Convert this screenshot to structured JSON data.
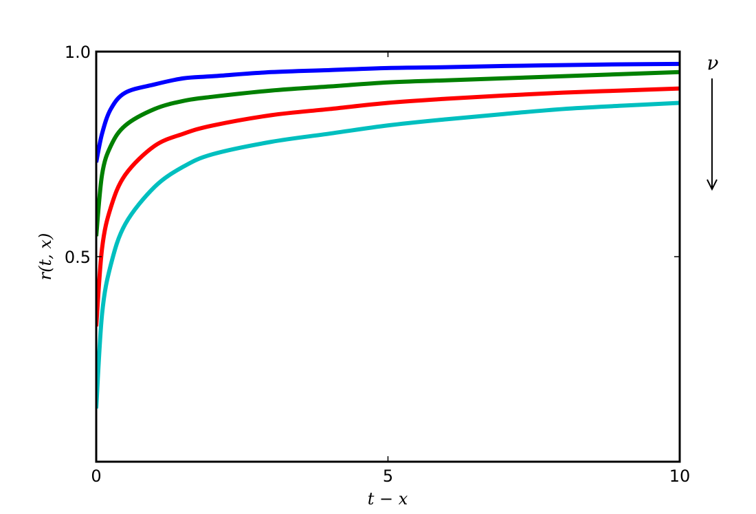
{
  "chart_data": {
    "type": "line",
    "title": "",
    "xlabel": "t − x",
    "ylabel": "r(t, x)",
    "xlim": [
      0,
      10
    ],
    "ylim": [
      0,
      1
    ],
    "xticks": [
      0,
      5,
      10
    ],
    "xtick_labels": [
      "0",
      "5",
      "10"
    ],
    "yticks": [
      0.5,
      1.0
    ],
    "ytick_labels": [
      "0.5",
      "1.0"
    ],
    "grid": false,
    "legend": "none",
    "annotation": {
      "text": "ν",
      "arrow": "down"
    },
    "x": [
      0,
      0.1,
      0.25,
      0.5,
      1,
      1.5,
      2,
      3,
      4,
      5,
      6,
      7,
      8,
      9,
      10
    ],
    "series": [
      {
        "color": "#0000ff",
        "values": [
          0.73,
          0.8,
          0.86,
          0.9,
          0.92,
          0.935,
          0.94,
          0.95,
          0.955,
          0.96,
          0.962,
          0.965,
          0.967,
          0.969,
          0.97
        ]
      },
      {
        "color": "#008000",
        "values": [
          0.55,
          0.7,
          0.77,
          0.82,
          0.86,
          0.88,
          0.89,
          0.905,
          0.915,
          0.925,
          0.93,
          0.935,
          0.94,
          0.945,
          0.95
        ]
      },
      {
        "color": "#ff0000",
        "values": [
          0.33,
          0.52,
          0.62,
          0.7,
          0.77,
          0.8,
          0.82,
          0.845,
          0.86,
          0.875,
          0.885,
          0.893,
          0.9,
          0.905,
          0.91
        ]
      },
      {
        "color": "#00bfbf",
        "values": [
          0.13,
          0.36,
          0.48,
          0.58,
          0.67,
          0.72,
          0.75,
          0.78,
          0.8,
          0.82,
          0.835,
          0.848,
          0.86,
          0.868,
          0.875
        ]
      }
    ]
  }
}
